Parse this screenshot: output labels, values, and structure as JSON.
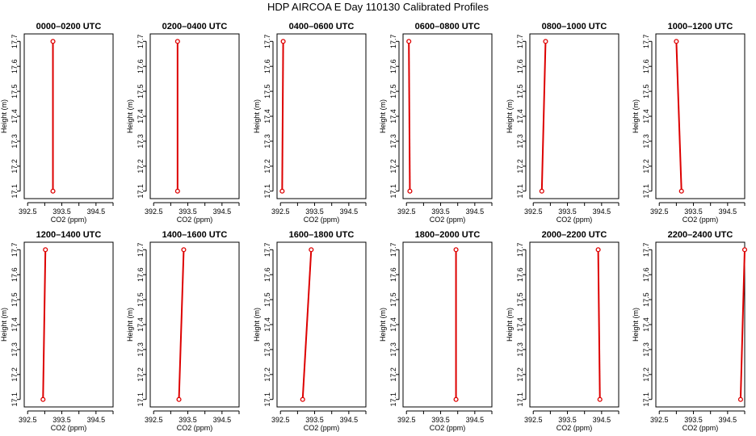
{
  "figure": {
    "title": "HDP AIRCOA E  Day 110130  Calibrated Profiles",
    "line_color": "#dd0000",
    "axis_color": "#000000"
  },
  "chart_data": [
    {
      "type": "line",
      "title": "0000–0200 UTC",
      "xlabel": "CO2 (ppm)",
      "ylabel": "Height (m)",
      "xlim": [
        392.4,
        395.0
      ],
      "ylim": [
        17.07,
        17.73
      ],
      "xticks": [
        "392.5",
        "393.5",
        "394.5"
      ],
      "xticks_minor": [
        393.0,
        394.0,
        395.0
      ],
      "yticks": [
        "17.1",
        "17.2",
        "17.3",
        "17.4",
        "17.5",
        "17.6",
        "17.7"
      ],
      "series": [
        {
          "x": [
            393.24,
            393.24
          ],
          "y": [
            17.1,
            17.7
          ]
        }
      ]
    },
    {
      "type": "line",
      "title": "0200–0400 UTC",
      "xlabel": "CO2 (ppm)",
      "ylabel": "Height (m)",
      "xlim": [
        392.4,
        395.0
      ],
      "ylim": [
        17.07,
        17.73
      ],
      "xticks": [
        "392.5",
        "393.5",
        "394.5"
      ],
      "xticks_minor": [
        393.0,
        394.0,
        395.0
      ],
      "yticks": [
        "17.1",
        "17.2",
        "17.3",
        "17.4",
        "17.5",
        "17.6",
        "17.7"
      ],
      "series": [
        {
          "x": [
            393.2,
            393.2
          ],
          "y": [
            17.1,
            17.7
          ]
        }
      ]
    },
    {
      "type": "line",
      "title": "0400–0600 UTC",
      "xlabel": "CO2 (ppm)",
      "ylabel": "Height (m)",
      "xlim": [
        392.4,
        395.0
      ],
      "ylim": [
        17.07,
        17.73
      ],
      "xticks": [
        "392.5",
        "393.5",
        "394.5"
      ],
      "xticks_minor": [
        393.0,
        394.0,
        395.0
      ],
      "yticks": [
        "17.1",
        "17.2",
        "17.3",
        "17.4",
        "17.5",
        "17.6",
        "17.7"
      ],
      "series": [
        {
          "x": [
            392.55,
            392.58
          ],
          "y": [
            17.1,
            17.7
          ]
        }
      ]
    },
    {
      "type": "line",
      "title": "0600–0800 UTC",
      "xlabel": "CO2 (ppm)",
      "ylabel": "Height (m)",
      "xlim": [
        392.4,
        395.0
      ],
      "ylim": [
        17.07,
        17.73
      ],
      "xticks": [
        "392.5",
        "393.5",
        "394.5"
      ],
      "xticks_minor": [
        393.0,
        394.0,
        395.0
      ],
      "yticks": [
        "17.1",
        "17.2",
        "17.3",
        "17.4",
        "17.5",
        "17.6",
        "17.7"
      ],
      "series": [
        {
          "x": [
            392.6,
            392.57
          ],
          "y": [
            17.1,
            17.7
          ]
        }
      ]
    },
    {
      "type": "line",
      "title": "0800–1000 UTC",
      "xlabel": "CO2 (ppm)",
      "ylabel": "Height (m)",
      "xlim": [
        392.4,
        395.0
      ],
      "ylim": [
        17.07,
        17.73
      ],
      "xticks": [
        "392.5",
        "393.5",
        "394.5"
      ],
      "xticks_minor": [
        393.0,
        394.0,
        395.0
      ],
      "yticks": [
        "17.1",
        "17.2",
        "17.3",
        "17.4",
        "17.5",
        "17.6",
        "17.7"
      ],
      "series": [
        {
          "x": [
            392.75,
            392.86
          ],
          "y": [
            17.1,
            17.7
          ]
        }
      ]
    },
    {
      "type": "line",
      "title": "1000–1200 UTC",
      "xlabel": "CO2 (ppm)",
      "ylabel": "Height (m)",
      "xlim": [
        392.4,
        395.0
      ],
      "ylim": [
        17.07,
        17.73
      ],
      "xticks": [
        "392.5",
        "393.5",
        "394.5"
      ],
      "xticks_minor": [
        393.0,
        394.0,
        395.0
      ],
      "yticks": [
        "17.1",
        "17.2",
        "17.3",
        "17.4",
        "17.5",
        "17.6",
        "17.7"
      ],
      "series": [
        {
          "x": [
            393.15,
            393.0
          ],
          "y": [
            17.1,
            17.7
          ]
        }
      ]
    },
    {
      "type": "line",
      "title": "1200–1400 UTC",
      "xlabel": "CO2 (ppm)",
      "ylabel": "Height (m)",
      "xlim": [
        392.4,
        395.0
      ],
      "ylim": [
        17.07,
        17.73
      ],
      "xticks": [
        "392.5",
        "393.5",
        "394.5"
      ],
      "xticks_minor": [
        393.0,
        394.0,
        395.0
      ],
      "yticks": [
        "17.1",
        "17.2",
        "17.3",
        "17.4",
        "17.5",
        "17.6",
        "17.7"
      ],
      "series": [
        {
          "x": [
            392.95,
            393.02
          ],
          "y": [
            17.1,
            17.7
          ]
        }
      ]
    },
    {
      "type": "line",
      "title": "1400–1600 UTC",
      "xlabel": "CO2 (ppm)",
      "ylabel": "Height (m)",
      "xlim": [
        392.4,
        395.0
      ],
      "ylim": [
        17.07,
        17.73
      ],
      "xticks": [
        "392.5",
        "393.5",
        "394.5"
      ],
      "xticks_minor": [
        393.0,
        394.0,
        395.0
      ],
      "yticks": [
        "17.1",
        "17.2",
        "17.3",
        "17.4",
        "17.5",
        "17.6",
        "17.7"
      ],
      "series": [
        {
          "x": [
            393.24,
            393.38
          ],
          "y": [
            17.1,
            17.7
          ]
        }
      ]
    },
    {
      "type": "line",
      "title": "1600–1800 UTC",
      "xlabel": "CO2 (ppm)",
      "ylabel": "Height (m)",
      "xlim": [
        392.4,
        395.0
      ],
      "ylim": [
        17.07,
        17.73
      ],
      "xticks": [
        "392.5",
        "393.5",
        "394.5"
      ],
      "xticks_minor": [
        393.0,
        394.0,
        395.0
      ],
      "yticks": [
        "17.1",
        "17.2",
        "17.3",
        "17.4",
        "17.5",
        "17.6",
        "17.7"
      ],
      "series": [
        {
          "x": [
            393.15,
            393.4
          ],
          "y": [
            17.1,
            17.7
          ]
        }
      ]
    },
    {
      "type": "line",
      "title": "1800–2000 UTC",
      "xlabel": "CO2 (ppm)",
      "ylabel": "Height (m)",
      "xlim": [
        392.4,
        395.0
      ],
      "ylim": [
        17.07,
        17.73
      ],
      "xticks": [
        "392.5",
        "393.5",
        "394.5"
      ],
      "xticks_minor": [
        393.0,
        394.0,
        395.0
      ],
      "yticks": [
        "17.1",
        "17.2",
        "17.3",
        "17.4",
        "17.5",
        "17.6",
        "17.7"
      ],
      "series": [
        {
          "x": [
            393.95,
            393.95
          ],
          "y": [
            17.1,
            17.7
          ]
        }
      ]
    },
    {
      "type": "line",
      "title": "2000–2200 UTC",
      "xlabel": "CO2 (ppm)",
      "ylabel": "Height (m)",
      "xlim": [
        392.4,
        395.0
      ],
      "ylim": [
        17.07,
        17.73
      ],
      "xticks": [
        "392.5",
        "393.5",
        "394.5"
      ],
      "xticks_minor": [
        393.0,
        394.0,
        395.0
      ],
      "yticks": [
        "17.1",
        "17.2",
        "17.3",
        "17.4",
        "17.5",
        "17.6",
        "17.7"
      ],
      "series": [
        {
          "x": [
            394.45,
            394.4
          ],
          "y": [
            17.1,
            17.7
          ]
        }
      ]
    },
    {
      "type": "line",
      "title": "2200–2400 UTC",
      "xlabel": "CO2 (ppm)",
      "ylabel": "Height (m)",
      "xlim": [
        392.4,
        395.0
      ],
      "ylim": [
        17.07,
        17.73
      ],
      "xticks": [
        "392.5",
        "393.5",
        "394.5"
      ],
      "xticks_minor": [
        393.0,
        394.0,
        395.0
      ],
      "yticks": [
        "17.1",
        "17.2",
        "17.3",
        "17.4",
        "17.5",
        "17.6",
        "17.7"
      ],
      "series": [
        {
          "x": [
            394.88,
            395.0
          ],
          "y": [
            17.1,
            17.7
          ]
        }
      ]
    }
  ]
}
